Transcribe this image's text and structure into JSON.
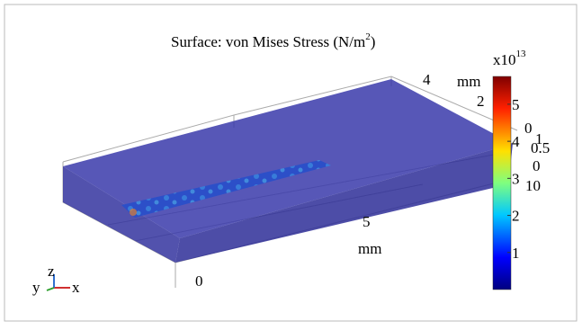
{
  "plot": {
    "title": {
      "main": "Surface: von Mises Stress (N/m",
      "sup": "2",
      "end": ")"
    },
    "colorbar": {
      "multiplier": "x10",
      "exponent": "13",
      "range": [
        0,
        5.75
      ],
      "ticks": [
        1,
        2,
        3,
        4,
        5
      ]
    },
    "axis_labels": {
      "y_axis": [
        "4",
        "mm",
        "2",
        "0"
      ],
      "z_axis": [
        "1",
        "0.5",
        "0"
      ],
      "x_axis": [
        "10",
        "5",
        "mm",
        "0"
      ]
    },
    "triad": {
      "y": "y",
      "z": "z",
      "x": "x"
    }
  }
}
